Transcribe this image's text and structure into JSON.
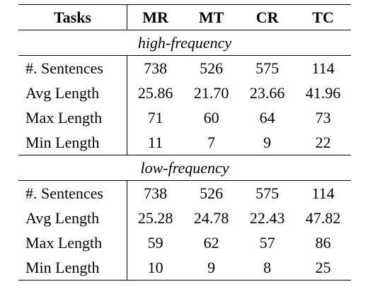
{
  "table": {
    "headers": [
      "Tasks",
      "MR",
      "MT",
      "CR",
      "TC"
    ],
    "sections": [
      {
        "title": "high-frequency",
        "rows": [
          {
            "label": "#. Sentences",
            "values": [
              "738",
              "526",
              "575",
              "114"
            ]
          },
          {
            "label": "Avg Length",
            "values": [
              "25.86",
              "21.70",
              "23.66",
              "41.96"
            ]
          },
          {
            "label": "Max Length",
            "values": [
              "71",
              "60",
              "64",
              "73"
            ]
          },
          {
            "label": "Min Length",
            "values": [
              "11",
              "7",
              "9",
              "22"
            ]
          }
        ]
      },
      {
        "title": "low-frequency",
        "rows": [
          {
            "label": "#. Sentences",
            "values": [
              "738",
              "526",
              "575",
              "114"
            ]
          },
          {
            "label": "Avg Length",
            "values": [
              "25.28",
              "24.78",
              "22.43",
              "47.82"
            ]
          },
          {
            "label": "Max Length",
            "values": [
              "59",
              "62",
              "57",
              "86"
            ]
          },
          {
            "label": "Min Length",
            "values": [
              "10",
              "9",
              "8",
              "25"
            ]
          }
        ]
      }
    ]
  }
}
